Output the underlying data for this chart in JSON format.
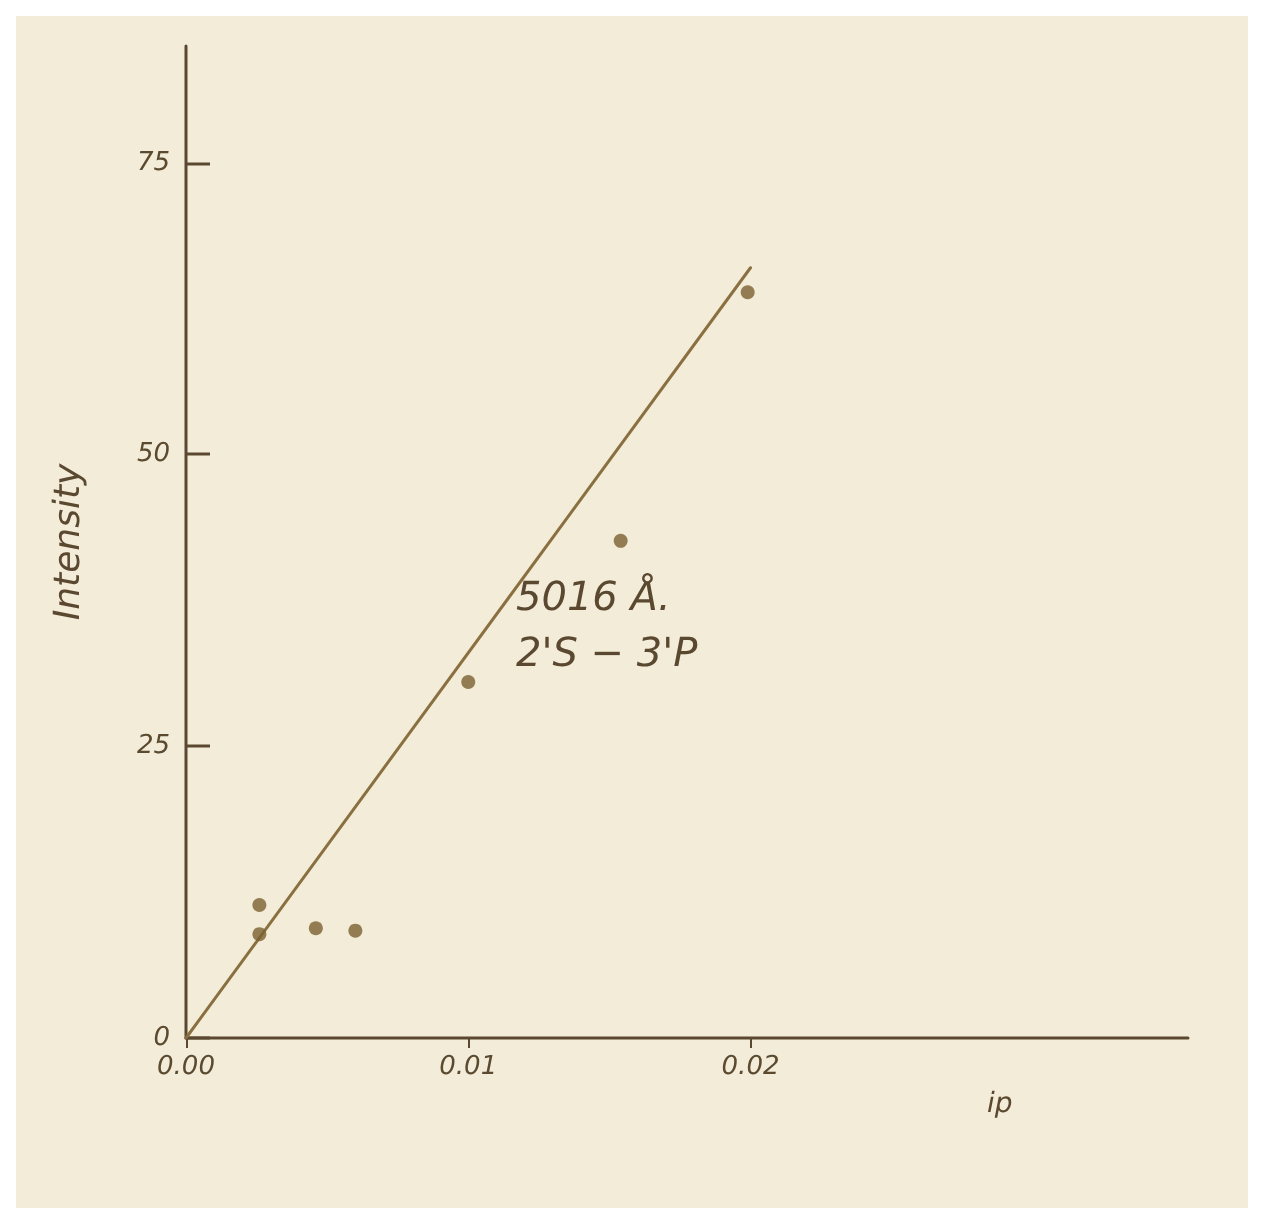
{
  "chart_data": {
    "type": "scatter",
    "xlabel": "ip",
    "ylabel": "Intensity",
    "annotations": [
      "5016 Å.",
      "2'S − 3'P"
    ],
    "x": [
      0.0026,
      0.0026,
      0.0046,
      0.006,
      0.01,
      0.0154,
      0.0199
    ],
    "series": [
      {
        "color": "#7a6030",
        "values": [
          11.4,
          8.9,
          9.4,
          9.2,
          30.5,
          42.6,
          63.9
        ],
        "marker": "circle"
      },
      {
        "type": "line",
        "color": "#8a7040",
        "x": [
          0,
          0.02
        ],
        "values": [
          0,
          66
        ],
        "marker": "none",
        "line_style": "solid"
      }
    ],
    "xlim": [
      0,
      0.0355
    ],
    "ylim": [
      0,
      85
    ],
    "xticks": [
      {
        "value": 0,
        "label": "0.00"
      },
      {
        "value": 0.01,
        "label": "0.01"
      },
      {
        "value": 0.02,
        "label": "0.02"
      }
    ],
    "yticks": [
      0,
      25,
      50,
      75
    ]
  }
}
